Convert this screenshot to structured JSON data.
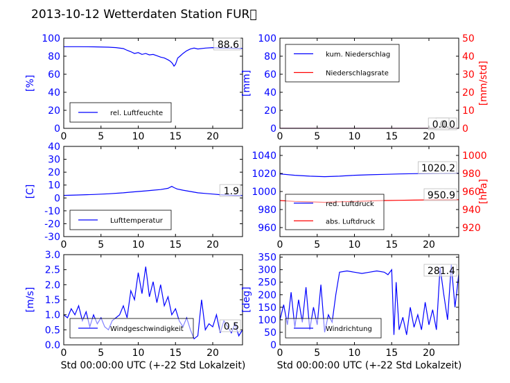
{
  "title": "2013-10-12 Wetterdaten Station FUR\u0000",
  "chart_data": [
    {
      "type": "line",
      "ylabel": "[%]",
      "ylim": [
        0,
        100
      ],
      "yticks": [
        0,
        20,
        40,
        60,
        80,
        100
      ],
      "xlim": [
        0,
        24
      ],
      "xticks": [
        0,
        5,
        10,
        15,
        20
      ],
      "legend": {
        "position": "lower-left",
        "entries": [
          "rel. Luftfeuchte"
        ]
      },
      "readouts": [
        "88.6"
      ],
      "series": [
        {
          "name": "rel. Luftfeuchte",
          "color": "#0000ff",
          "x": [
            0,
            2,
            4,
            6,
            7,
            8,
            8.5,
            9,
            9.5,
            10,
            10.5,
            11,
            11.5,
            12,
            12.5,
            13,
            13.5,
            14,
            14.3,
            14.6,
            14.8,
            15,
            15.3,
            15.6,
            16,
            16.5,
            17,
            17.5,
            18,
            19,
            20,
            21,
            22,
            23,
            24
          ],
          "y": [
            90.5,
            90.5,
            90.4,
            90,
            89.5,
            88.5,
            86.5,
            85,
            83,
            84,
            82,
            83,
            81.5,
            82,
            80.5,
            79,
            78,
            76,
            74.5,
            72,
            69,
            71,
            78,
            80,
            83,
            86,
            88,
            89,
            88,
            89,
            89.5,
            89,
            89,
            88.8,
            88.6
          ]
        }
      ]
    },
    {
      "type": "line",
      "ylabel": "[mm]",
      "ylabel2": "[mm/std]",
      "ylim": [
        0,
        100
      ],
      "ylim2": [
        0,
        50
      ],
      "yticks": [
        0,
        20,
        40,
        60,
        80,
        100
      ],
      "yticks2": [
        0,
        10,
        20,
        30,
        40,
        50
      ],
      "xlim": [
        0,
        24
      ],
      "xticks": [
        0,
        5,
        10,
        15,
        20
      ],
      "legend": {
        "position": "upper-left",
        "entries": [
          "kum. Niederschlag",
          "Niederschlagsrate"
        ]
      },
      "readouts": [
        "0.0",
        "0.0"
      ],
      "series": [
        {
          "name": "kum. Niederschlag",
          "color": "#0000ff",
          "x": [
            0,
            24
          ],
          "y": [
            0,
            0
          ]
        },
        {
          "name": "Niederschlagsrate",
          "color": "#ff0000",
          "x": [
            0,
            24
          ],
          "y": [
            0,
            0
          ]
        }
      ]
    },
    {
      "type": "line",
      "ylabel": "[C]",
      "ylim": [
        -30,
        40
      ],
      "yticks": [
        -30,
        -20,
        -10,
        0,
        10,
        20,
        30,
        40
      ],
      "xlim": [
        0,
        24
      ],
      "xticks": [
        0,
        5,
        10,
        15,
        20
      ],
      "legend": {
        "position": "lower-left",
        "entries": [
          "Lufttemperatur"
        ]
      },
      "readouts": [
        "1.9"
      ],
      "series": [
        {
          "name": "Lufttemperatur",
          "color": "#0000ff",
          "x": [
            0,
            2,
            4,
            6,
            8,
            9,
            10,
            11,
            12,
            13,
            14,
            14.5,
            14.8,
            15.2,
            16,
            17,
            18,
            19,
            20,
            21,
            22,
            23,
            24
          ],
          "y": [
            2,
            2.3,
            2.7,
            3.2,
            4,
            4.5,
            5,
            5.5,
            6,
            6.5,
            7.5,
            9,
            8,
            7,
            6,
            5,
            4,
            3.5,
            3,
            2.5,
            2.2,
            2,
            1.9
          ]
        }
      ]
    },
    {
      "type": "line",
      "ylabel2": "[hPa]",
      "ylim": [
        950,
        1050
      ],
      "ylim2": [
        910,
        1010
      ],
      "yticks": [
        960,
        980,
        1000,
        1020,
        1040
      ],
      "yticks2": [
        920,
        940,
        960,
        980,
        1000
      ],
      "xlim": [
        0,
        24
      ],
      "xticks": [
        0,
        5,
        10,
        15,
        20
      ],
      "legend": {
        "position": "lower-left",
        "entries": [
          "red. Luftdruck",
          "abs. Luftdruck"
        ]
      },
      "readouts": [
        "1020.2",
        "950.9"
      ],
      "series": [
        {
          "name": "red. Luftdruck",
          "color": "#0000ff",
          "x": [
            0,
            2,
            4,
            6,
            8,
            10,
            12,
            14,
            16,
            18,
            20,
            22,
            24
          ],
          "y": [
            1019.5,
            1018,
            1017,
            1016.5,
            1017,
            1018,
            1018.5,
            1019,
            1019.5,
            1019.8,
            1020,
            1020.1,
            1020.2
          ]
        },
        {
          "name": "abs. Luftdruck",
          "color": "#ff0000",
          "axis": "right",
          "x": [
            0,
            2,
            4,
            6,
            8,
            10,
            12,
            14,
            16,
            18,
            20,
            22,
            24
          ],
          "y": [
            950,
            949,
            948.5,
            948,
            948.5,
            949,
            949.5,
            950,
            950.2,
            950.5,
            950.7,
            950.8,
            950.9
          ]
        }
      ]
    },
    {
      "type": "line",
      "ylabel": "[m/s]",
      "ylim": [
        0,
        3
      ],
      "yticks": [
        0,
        0.5,
        1,
        1.5,
        2,
        2.5,
        3
      ],
      "ytick_labels": [
        "0.0",
        "0.5",
        "1.0",
        "1.5",
        "2.0",
        "2.5",
        "3.0"
      ],
      "xlim": [
        0,
        24
      ],
      "xticks": [
        0,
        5,
        10,
        15,
        20
      ],
      "xlabel": "Std 00:00:00 UTC (+-22 Std Lokalzeit)",
      "legend": {
        "position": "lower-left",
        "entries": [
          "Windgeschwindigkeit"
        ]
      },
      "readouts": [
        "0.5"
      ],
      "series": [
        {
          "name": "Windgeschwindigkeit",
          "color": "#0000ff",
          "x": [
            0,
            0.5,
            1,
            1.5,
            2,
            2.5,
            3,
            3.5,
            4,
            4.5,
            5,
            5.5,
            6,
            6.5,
            7,
            7.5,
            8,
            8.5,
            9,
            9.5,
            10,
            10.5,
            11,
            11.5,
            12,
            12.5,
            13,
            13.5,
            14,
            14.5,
            15,
            15.5,
            16,
            16.5,
            17,
            17.5,
            18,
            18.5,
            19,
            19.5,
            20,
            20.5,
            21,
            21.5,
            22,
            22.5,
            23,
            23.5,
            24
          ],
          "y": [
            1.0,
            0.9,
            1.2,
            1.0,
            1.3,
            0.8,
            1.1,
            0.6,
            1.0,
            0.7,
            0.9,
            0.6,
            0.5,
            0.8,
            0.9,
            1.0,
            1.3,
            0.9,
            1.8,
            1.5,
            2.4,
            1.7,
            2.6,
            1.6,
            2.1,
            1.4,
            2.0,
            1.3,
            1.6,
            1.0,
            1.2,
            0.8,
            0.6,
            0.9,
            0.5,
            0.2,
            0.3,
            1.5,
            0.5,
            0.7,
            0.6,
            1.0,
            0.4,
            0.8,
            0.6,
            0.4,
            0.7,
            0.3,
            0.5
          ]
        }
      ]
    },
    {
      "type": "line",
      "ylabel": "[deg]",
      "ylim": [
        0,
        360
      ],
      "yticks": [
        0,
        50,
        100,
        150,
        200,
        250,
        300,
        350
      ],
      "xlim": [
        0,
        24
      ],
      "xticks": [
        0,
        5,
        10,
        15,
        20
      ],
      "xlabel": "Std 00:00:00 UTC (+-22 Std Lokalzeit)",
      "legend": {
        "position": "lower-left",
        "entries": [
          "Windrichtung"
        ]
      },
      "readouts": [
        "281.4"
      ],
      "series": [
        {
          "name": "Windrichtung",
          "color": "#0000ff",
          "x": [
            0,
            0.5,
            1,
            1.5,
            2,
            2.5,
            3,
            3.5,
            4,
            4.5,
            5,
            5.5,
            6,
            6.5,
            7,
            7.5,
            8,
            9,
            10,
            11,
            12,
            13,
            14,
            14.5,
            15,
            15.3,
            15.6,
            16,
            16.5,
            17,
            17.5,
            18,
            18.5,
            19,
            19.5,
            20,
            20.5,
            21,
            21.5,
            22,
            22.5,
            23,
            23.5,
            24
          ],
          "y": [
            100,
            160,
            80,
            210,
            70,
            180,
            90,
            230,
            60,
            150,
            80,
            240,
            50,
            120,
            90,
            200,
            290,
            295,
            290,
            285,
            290,
            295,
            290,
            280,
            300,
            40,
            250,
            60,
            110,
            40,
            150,
            70,
            120,
            60,
            170,
            80,
            140,
            60,
            310,
            200,
            100,
            320,
            150,
            281
          ]
        }
      ]
    }
  ]
}
